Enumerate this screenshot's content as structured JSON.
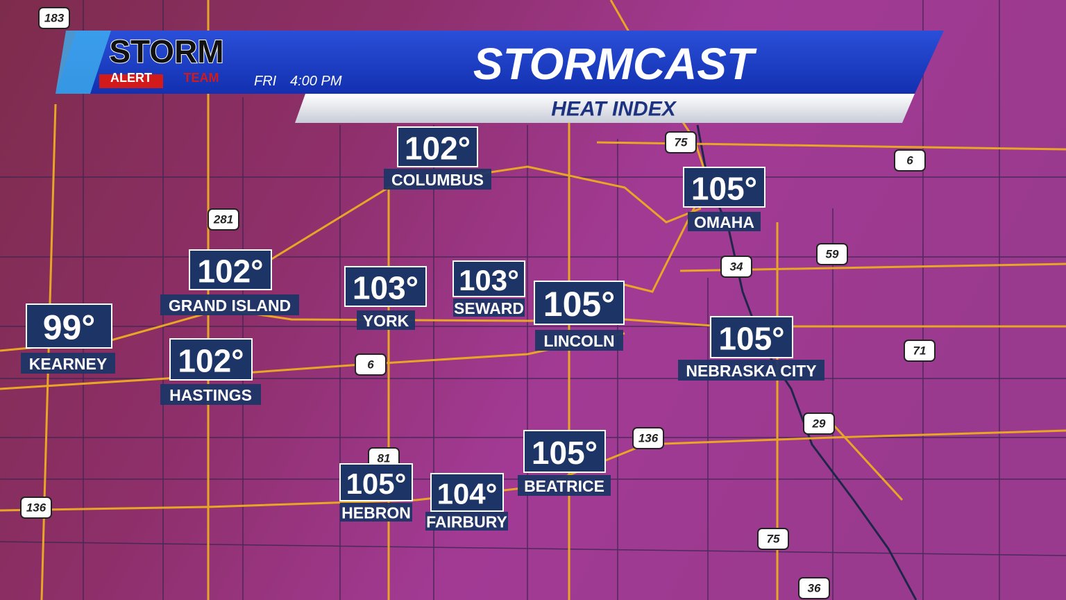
{
  "header": {
    "logo_top": "STORM",
    "logo_alert": "ALERT",
    "logo_team": "TEAM",
    "day": "FRI",
    "time": "4:00 PM",
    "title": "STORMCAST",
    "subtitle": "HEAT INDEX"
  },
  "cities": [
    {
      "temp": "102°",
      "name": "COLUMBUS"
    },
    {
      "temp": "105°",
      "name": "OMAHA"
    },
    {
      "temp": "102°",
      "name": "GRAND ISLAND"
    },
    {
      "temp": "103°",
      "name": "YORK"
    },
    {
      "temp": "103°",
      "name": "SEWARD"
    },
    {
      "temp": "105°",
      "name": "LINCOLN"
    },
    {
      "temp": "99°",
      "name": "KEARNEY"
    },
    {
      "temp": "102°",
      "name": "HASTINGS"
    },
    {
      "temp": "105°",
      "name": "NEBRASKA CITY"
    },
    {
      "temp": "105°",
      "name": "HEBRON"
    },
    {
      "temp": "104°",
      "name": "FAIRBURY"
    },
    {
      "temp": "105°",
      "name": "BEATRICE"
    }
  ],
  "shields": [
    "183",
    "281",
    "75",
    "6",
    "34",
    "59",
    "71",
    "29",
    "136",
    "81",
    "136",
    "6",
    "75",
    "36"
  ]
}
